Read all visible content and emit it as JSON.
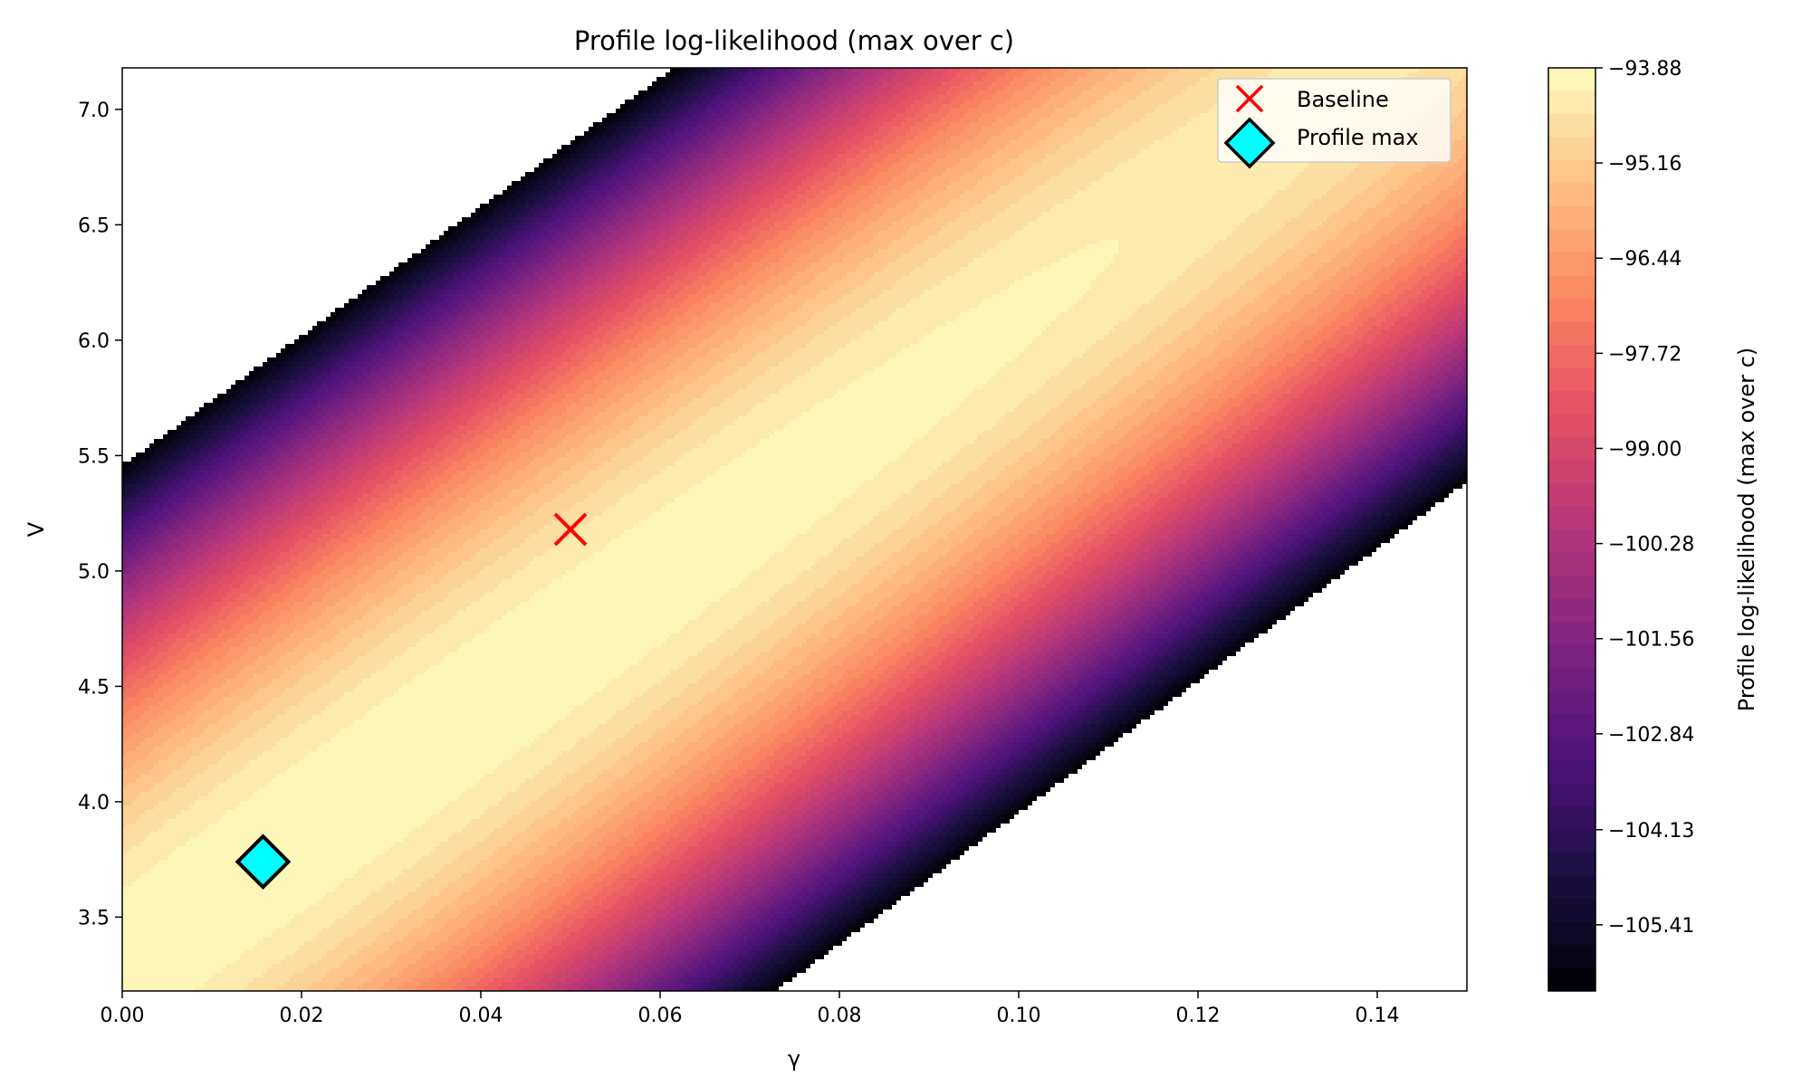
{
  "chart_data": {
    "type": "contour",
    "title": "Profile log-likelihood (max over c)",
    "xlabel": "γ",
    "ylabel": "V",
    "xlim": [
      0.0,
      0.15
    ],
    "ylim": [
      3.18,
      7.18
    ],
    "xticks": [
      0.0,
      0.02,
      0.04,
      0.06,
      0.08,
      0.1,
      0.12,
      0.14
    ],
    "xtick_labels": [
      "0.00",
      "0.02",
      "0.04",
      "0.06",
      "0.08",
      "0.10",
      "0.12",
      "0.14"
    ],
    "yticks": [
      3.5,
      4.0,
      4.5,
      5.0,
      5.5,
      6.0,
      6.5,
      7.0
    ],
    "ytick_labels": [
      "3.5",
      "4.0",
      "4.5",
      "5.0",
      "5.5",
      "6.0",
      "6.5",
      "7.0"
    ],
    "colorbar": {
      "label": "Profile log-likelihood (max over c)",
      "colormap": "magma",
      "range": [
        -106.3,
        -93.88
      ],
      "ticks": [
        -93.88,
        -95.16,
        -96.44,
        -97.72,
        -99.0,
        -100.28,
        -101.56,
        -102.84,
        -104.13,
        -105.41
      ],
      "tick_labels": [
        "−93.88",
        "−95.16",
        "−96.44",
        "−97.72",
        "−99.00",
        "−100.28",
        "−101.56",
        "−102.84",
        "−104.13",
        "−105.41"
      ]
    },
    "surface": {
      "peak": [
        0.016,
        3.74
      ],
      "ridge_slope": 28.5,
      "across_curvature": 2.6,
      "along_curvature": 0.04
    },
    "points": [
      {
        "label": "Baseline",
        "x": 0.05,
        "y": 5.18,
        "marker": "x",
        "color": "#ff0000"
      },
      {
        "label": "Profile max",
        "x": 0.0157,
        "y": 3.74,
        "marker": "diamond",
        "color": "#00ffff"
      }
    ],
    "legend": {
      "position": "top-right",
      "entries": [
        "Baseline",
        "Profile max"
      ]
    },
    "grid": false
  }
}
